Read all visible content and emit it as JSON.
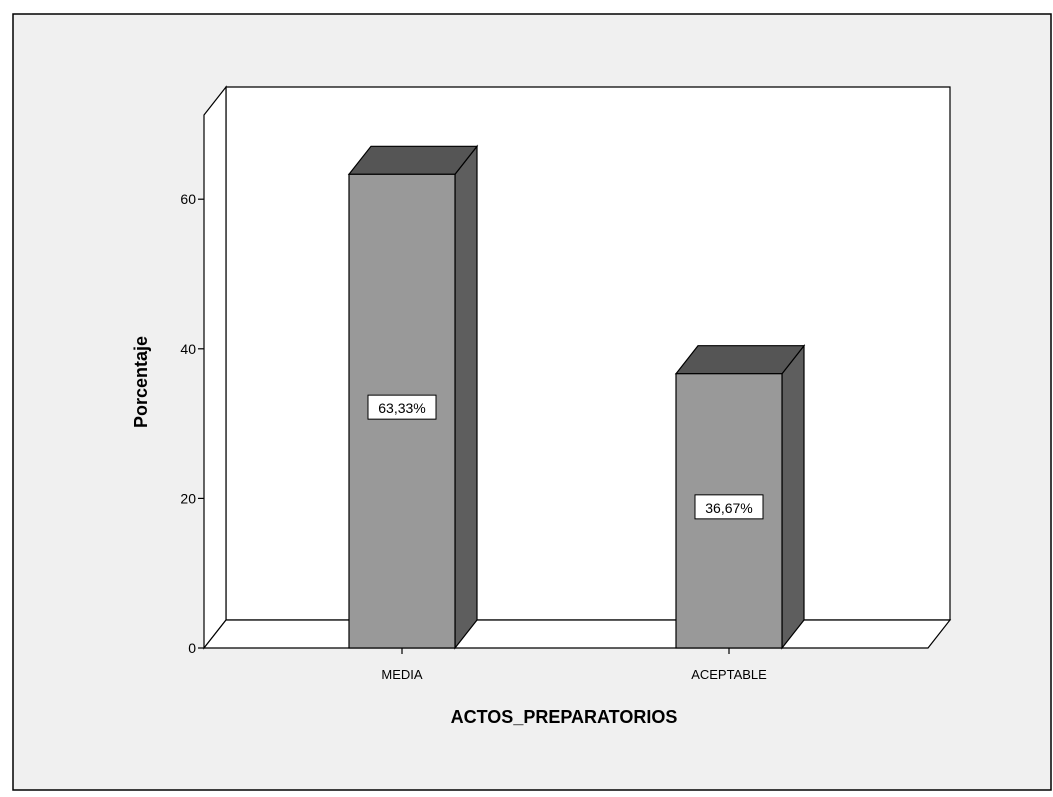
{
  "chart_data": {
    "type": "bar",
    "style": "3d",
    "categories": [
      "MEDIA",
      "ACEPTABLE"
    ],
    "values": [
      63.33,
      36.67
    ],
    "data_labels": [
      "63,33%",
      "36,67%"
    ],
    "xlabel": "ACTOS_PREPARATORIOS",
    "ylabel": "Porcentaje",
    "ylim": [
      0,
      75
    ],
    "y_ticks": [
      0,
      20,
      40,
      60
    ],
    "y_tick_labels": [
      "0",
      "20",
      "40",
      "60"
    ],
    "grid": false,
    "legend": "none",
    "colors": {
      "background": "#f0f0f0",
      "plot_area": "#ffffff",
      "bar_front": "#999999",
      "bar_top": "#555555",
      "bar_side": "#5e5e5e",
      "outline": "#000000"
    }
  }
}
